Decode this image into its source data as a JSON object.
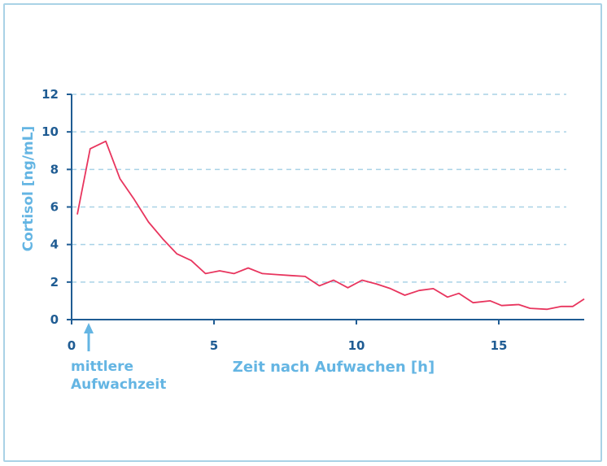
{
  "chart_data": {
    "type": "line",
    "xlabel": "Zeit nach Aufwachen [h]",
    "ylabel": "Cortisol [ng/mL]",
    "xlim": [
      0,
      18
    ],
    "ylim": [
      0,
      12
    ],
    "x_ticks": [
      "0",
      "5",
      "10",
      "15"
    ],
    "y_ticks": [
      "0",
      "2",
      "4",
      "6",
      "8",
      "10",
      "12"
    ],
    "grid": "horizontal dashed",
    "series": [
      {
        "color": "#e8355e",
        "points": [
          [
            0.2,
            5.6
          ],
          [
            0.65,
            9.1
          ],
          [
            1.2,
            9.5
          ],
          [
            1.7,
            7.5
          ],
          [
            2.2,
            6.4
          ],
          [
            2.7,
            5.2
          ],
          [
            3.2,
            4.3
          ],
          [
            3.7,
            3.5
          ],
          [
            4.2,
            3.15
          ],
          [
            4.7,
            2.45
          ],
          [
            5.2,
            2.6
          ],
          [
            5.7,
            2.45
          ],
          [
            6.2,
            2.75
          ],
          [
            6.7,
            2.45
          ],
          [
            7.2,
            2.4
          ],
          [
            7.7,
            2.35
          ],
          [
            8.2,
            2.3
          ],
          [
            8.7,
            1.8
          ],
          [
            9.2,
            2.1
          ],
          [
            9.7,
            1.7
          ],
          [
            10.2,
            2.1
          ],
          [
            10.7,
            1.9
          ],
          [
            11.2,
            1.65
          ],
          [
            11.7,
            1.3
          ],
          [
            12.2,
            1.55
          ],
          [
            12.7,
            1.65
          ],
          [
            13.2,
            1.2
          ],
          [
            13.6,
            1.4
          ],
          [
            14.1,
            0.9
          ],
          [
            14.7,
            1.0
          ],
          [
            15.1,
            0.75
          ],
          [
            15.7,
            0.8
          ],
          [
            16.1,
            0.6
          ],
          [
            16.7,
            0.55
          ],
          [
            17.2,
            0.7
          ],
          [
            17.6,
            0.7
          ],
          [
            18.0,
            1.1
          ]
        ]
      }
    ],
    "annotation": {
      "line1": "mittlere",
      "line2": "Aufwachzeit",
      "x": 0.6
    }
  },
  "colors": {
    "axis": "#1f5c93",
    "grid": "#a9d2e6",
    "line": "#e8355e",
    "label": "#64b5e3"
  }
}
